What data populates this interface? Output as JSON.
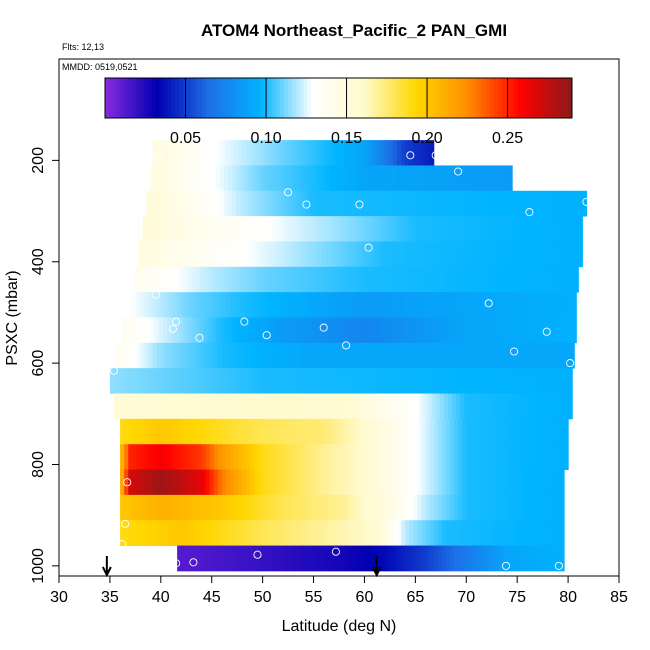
{
  "chart_data": {
    "type": "heatmap",
    "title": "ATOM4 Northeast_Pacific_2 PAN_GMI",
    "notes": [
      "Flts: 12,13",
      "MMDD: 0519,0521"
    ],
    "xlabel": "Latitude (deg N)",
    "ylabel": "PSXC (mbar)",
    "xlim": [
      30,
      85
    ],
    "ylim": [
      1020,
      0
    ],
    "xticks": [
      30,
      35,
      40,
      45,
      50,
      55,
      60,
      65,
      70,
      75,
      80,
      85
    ],
    "yticks": [
      200,
      400,
      600,
      800,
      1000
    ],
    "colorbar": {
      "range": [
        0.0,
        0.29
      ],
      "ticks": [
        0.05,
        0.1,
        0.15,
        0.2,
        0.25
      ],
      "tick_labels": [
        "0.05",
        "0.10",
        "0.15",
        "0.20",
        "0.25"
      ],
      "colors": [
        "#8a2be2",
        "#0000b0",
        "#1e6fe6",
        "#00b4ff",
        "#ffffff",
        "#fffacd",
        "#ffd700",
        "#ff8c00",
        "#ff0000",
        "#8b1a1a"
      ]
    },
    "bands": [
      {
        "pmin": 160,
        "pmax": 210,
        "lat_start": 39.2,
        "lat_end": 66.8,
        "profile": [
          [
            39.2,
            0.15
          ],
          [
            45,
            0.13
          ],
          [
            52,
            0.11
          ],
          [
            60,
            0.09
          ],
          [
            64,
            0.05
          ],
          [
            66.8,
            0.04
          ]
        ]
      },
      {
        "pmin": 210,
        "pmax": 260,
        "lat_start": 39.0,
        "lat_end": 74.5,
        "profile": [
          [
            39,
            0.15
          ],
          [
            45,
            0.13
          ],
          [
            50,
            0.11
          ],
          [
            60,
            0.09
          ],
          [
            74.5,
            0.085
          ]
        ]
      },
      {
        "pmin": 260,
        "pmax": 310,
        "lat_start": 38.6,
        "lat_end": 81.8,
        "profile": [
          [
            38.6,
            0.155
          ],
          [
            43,
            0.14
          ],
          [
            48,
            0.12
          ],
          [
            55,
            0.1
          ],
          [
            81.8,
            0.095
          ]
        ]
      },
      {
        "pmin": 310,
        "pmax": 360,
        "lat_start": 38.2,
        "lat_end": 81.4,
        "profile": [
          [
            38.2,
            0.155
          ],
          [
            44,
            0.14
          ],
          [
            50,
            0.13
          ],
          [
            58,
            0.115
          ],
          [
            65,
            0.1
          ],
          [
            81.4,
            0.095
          ]
        ]
      },
      {
        "pmin": 360,
        "pmax": 410,
        "lat_start": 37.8,
        "lat_end": 81.4,
        "profile": [
          [
            37.8,
            0.15
          ],
          [
            42,
            0.14
          ],
          [
            48,
            0.13
          ],
          [
            55,
            0.115
          ],
          [
            62,
            0.1
          ],
          [
            81.4,
            0.095
          ]
        ]
      },
      {
        "pmin": 410,
        "pmax": 460,
        "lat_start": 37.4,
        "lat_end": 81.0,
        "profile": [
          [
            37.4,
            0.14
          ],
          [
            45,
            0.12
          ],
          [
            50,
            0.11
          ],
          [
            60,
            0.1
          ],
          [
            81,
            0.095
          ]
        ]
      },
      {
        "pmin": 460,
        "pmax": 510,
        "lat_start": 36.8,
        "lat_end": 80.8,
        "profile": [
          [
            36.8,
            0.13
          ],
          [
            43,
            0.11
          ],
          [
            48,
            0.1
          ],
          [
            60,
            0.085
          ],
          [
            70,
            0.09
          ],
          [
            80.8,
            0.095
          ]
        ]
      },
      {
        "pmin": 510,
        "pmax": 560,
        "lat_start": 36.2,
        "lat_end": 80.8,
        "profile": [
          [
            36.2,
            0.14
          ],
          [
            41,
            0.12
          ],
          [
            46,
            0.1
          ],
          [
            52,
            0.085
          ],
          [
            60,
            0.075
          ],
          [
            70,
            0.09
          ],
          [
            80.8,
            0.095
          ]
        ]
      },
      {
        "pmin": 560,
        "pmax": 610,
        "lat_start": 35.6,
        "lat_end": 80.6,
        "profile": [
          [
            35.6,
            0.14
          ],
          [
            40,
            0.115
          ],
          [
            46,
            0.1
          ],
          [
            55,
            0.09
          ],
          [
            80.6,
            0.09
          ]
        ]
      },
      {
        "pmin": 610,
        "pmax": 660,
        "lat_start": 35.0,
        "lat_end": 80.4,
        "profile": [
          [
            35,
            0.115
          ],
          [
            40,
            0.11
          ],
          [
            50,
            0.1
          ],
          [
            80.4,
            0.095
          ]
        ]
      },
      {
        "pmin": 660,
        "pmax": 710,
        "lat_start": 35.4,
        "lat_end": 80.4,
        "profile": [
          [
            35.4,
            0.155
          ],
          [
            50,
            0.16
          ],
          [
            58,
            0.158
          ],
          [
            65,
            0.13
          ],
          [
            70,
            0.1
          ],
          [
            80.4,
            0.095
          ]
        ]
      },
      {
        "pmin": 710,
        "pmax": 760,
        "lat_start": 36.0,
        "lat_end": 80.0,
        "profile": [
          [
            36,
            0.19
          ],
          [
            40,
            0.2
          ],
          [
            50,
            0.18
          ],
          [
            56,
            0.175
          ],
          [
            60,
            0.16
          ],
          [
            65,
            0.13
          ],
          [
            70,
            0.1
          ],
          [
            80,
            0.095
          ]
        ]
      },
      {
        "pmin": 760,
        "pmax": 810,
        "lat_start": 36.0,
        "lat_end": 80.0,
        "profile": [
          [
            36,
            0.2
          ],
          [
            37,
            0.25
          ],
          [
            40,
            0.26
          ],
          [
            44,
            0.245
          ],
          [
            46,
            0.22
          ],
          [
            50,
            0.19
          ],
          [
            56,
            0.17
          ],
          [
            60,
            0.16
          ],
          [
            65,
            0.13
          ],
          [
            70,
            0.1
          ],
          [
            80,
            0.095
          ]
        ]
      },
      {
        "pmin": 810,
        "pmax": 860,
        "lat_start": 36.0,
        "lat_end": 79.6,
        "profile": [
          [
            36,
            0.2
          ],
          [
            37,
            0.27
          ],
          [
            40,
            0.285
          ],
          [
            44,
            0.265
          ],
          [
            46,
            0.23
          ],
          [
            50,
            0.19
          ],
          [
            56,
            0.17
          ],
          [
            60,
            0.16
          ],
          [
            65,
            0.13
          ],
          [
            70,
            0.1
          ],
          [
            79.6,
            0.095
          ]
        ]
      },
      {
        "pmin": 860,
        "pmax": 910,
        "lat_start": 36.0,
        "lat_end": 79.6,
        "profile": [
          [
            36,
            0.2
          ],
          [
            40,
            0.21
          ],
          [
            46,
            0.2
          ],
          [
            52,
            0.18
          ],
          [
            58,
            0.17
          ],
          [
            62,
            0.15
          ],
          [
            66,
            0.12
          ],
          [
            70,
            0.1
          ],
          [
            79.6,
            0.095
          ]
        ]
      },
      {
        "pmin": 910,
        "pmax": 960,
        "lat_start": 36.0,
        "lat_end": 79.6,
        "profile": [
          [
            36,
            0.19
          ],
          [
            42,
            0.2
          ],
          [
            50,
            0.18
          ],
          [
            58,
            0.165
          ],
          [
            61,
            0.16
          ],
          [
            64,
            0.12
          ],
          [
            68,
            0.1
          ],
          [
            79.6,
            0.095
          ]
        ]
      },
      {
        "pmin": 960,
        "pmax": 1010,
        "lat_start": 41.6,
        "lat_end": 79.6,
        "profile": [
          [
            41.6,
            0.012
          ],
          [
            45,
            0.015
          ],
          [
            50,
            0.02
          ],
          [
            58,
            0.028
          ],
          [
            62,
            0.035
          ],
          [
            66,
            0.05
          ],
          [
            70,
            0.07
          ],
          [
            74,
            0.09
          ],
          [
            79.6,
            0.095
          ]
        ]
      }
    ],
    "points": [
      [
        39.7,
        193
      ],
      [
        41.3,
        263
      ],
      [
        45.8,
        263
      ],
      [
        52.5,
        263
      ],
      [
        54.3,
        287
      ],
      [
        59.5,
        287
      ],
      [
        64.5,
        190
      ],
      [
        67,
        190
      ],
      [
        69.2,
        222
      ],
      [
        76.2,
        302
      ],
      [
        81.8,
        282
      ],
      [
        60.4,
        372
      ],
      [
        41.3,
        437
      ],
      [
        39.5,
        465
      ],
      [
        41.5,
        518
      ],
      [
        41.2,
        532
      ],
      [
        43.8,
        550
      ],
      [
        48.2,
        518
      ],
      [
        50.4,
        545
      ],
      [
        56,
        530
      ],
      [
        58.2,
        565
      ],
      [
        72.2,
        482
      ],
      [
        77.9,
        538
      ],
      [
        74.7,
        577
      ],
      [
        80.2,
        600
      ],
      [
        35.4,
        615
      ],
      [
        36.7,
        835
      ],
      [
        36.5,
        917
      ],
      [
        36.2,
        957
      ],
      [
        41.5,
        995
      ],
      [
        43.2,
        993
      ],
      [
        49.5,
        978
      ],
      [
        57.2,
        972
      ],
      [
        73.9,
        1000
      ],
      [
        79.1,
        1000
      ]
    ],
    "arrows": [
      34.7,
      61.2
    ]
  }
}
